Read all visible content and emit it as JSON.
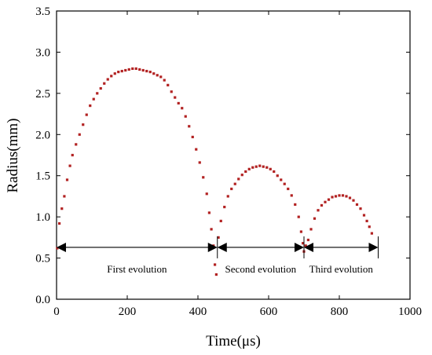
{
  "chart_data": {
    "type": "scatter",
    "xlabel": "Time(μs)",
    "ylabel": "Radius(mm)",
    "xlim": [
      0,
      1000
    ],
    "ylim": [
      0,
      3.5
    ],
    "xticks": [
      0,
      200,
      400,
      600,
      800,
      1000
    ],
    "yticks": [
      0.0,
      0.5,
      1.0,
      1.5,
      2.0,
      2.5,
      3.0,
      3.5
    ],
    "xtick_labels": [
      "0",
      "200",
      "400",
      "600",
      "800",
      "1000"
    ],
    "ytick_labels": [
      "0.0",
      "0.5",
      "1.0",
      "1.5",
      "2.0",
      "2.5",
      "3.0",
      "3.5"
    ],
    "marker_color": "#b22222",
    "series": [
      {
        "points": [
          [
            2,
            0.62
          ],
          [
            8,
            0.92
          ],
          [
            15,
            1.1
          ],
          [
            22,
            1.25
          ],
          [
            30,
            1.45
          ],
          [
            38,
            1.62
          ],
          [
            45,
            1.75
          ],
          [
            55,
            1.88
          ],
          [
            65,
            2.0
          ],
          [
            75,
            2.12
          ],
          [
            85,
            2.24
          ],
          [
            95,
            2.35
          ],
          [
            105,
            2.43
          ],
          [
            115,
            2.5
          ],
          [
            125,
            2.56
          ],
          [
            135,
            2.62
          ],
          [
            145,
            2.67
          ],
          [
            155,
            2.71
          ],
          [
            165,
            2.74
          ],
          [
            175,
            2.76
          ],
          [
            185,
            2.77
          ],
          [
            195,
            2.78
          ],
          [
            205,
            2.79
          ],
          [
            215,
            2.8
          ],
          [
            225,
            2.8
          ],
          [
            235,
            2.79
          ],
          [
            245,
            2.78
          ],
          [
            255,
            2.77
          ],
          [
            265,
            2.76
          ],
          [
            275,
            2.74
          ],
          [
            285,
            2.72
          ],
          [
            295,
            2.7
          ],
          [
            305,
            2.66
          ],
          [
            315,
            2.6
          ],
          [
            325,
            2.52
          ],
          [
            335,
            2.45
          ],
          [
            345,
            2.38
          ],
          [
            355,
            2.32
          ],
          [
            365,
            2.22
          ],
          [
            375,
            2.1
          ],
          [
            385,
            1.97
          ],
          [
            395,
            1.82
          ],
          [
            405,
            1.66
          ],
          [
            415,
            1.48
          ],
          [
            425,
            1.28
          ],
          [
            432,
            1.05
          ],
          [
            438,
            0.85
          ],
          [
            444,
            0.65
          ],
          [
            448,
            0.42
          ],
          [
            452,
            0.3
          ],
          [
            458,
            0.75
          ],
          [
            465,
            0.95
          ],
          [
            475,
            1.12
          ],
          [
            485,
            1.25
          ],
          [
            495,
            1.34
          ],
          [
            505,
            1.4
          ],
          [
            515,
            1.46
          ],
          [
            525,
            1.51
          ],
          [
            535,
            1.55
          ],
          [
            545,
            1.58
          ],
          [
            555,
            1.6
          ],
          [
            565,
            1.61
          ],
          [
            575,
            1.62
          ],
          [
            585,
            1.61
          ],
          [
            595,
            1.6
          ],
          [
            605,
            1.58
          ],
          [
            615,
            1.55
          ],
          [
            625,
            1.5
          ],
          [
            635,
            1.45
          ],
          [
            645,
            1.4
          ],
          [
            655,
            1.34
          ],
          [
            665,
            1.26
          ],
          [
            675,
            1.15
          ],
          [
            685,
            1.0
          ],
          [
            692,
            0.82
          ],
          [
            697,
            0.68
          ],
          [
            700,
            0.58
          ],
          [
            705,
            0.65
          ],
          [
            712,
            0.72
          ],
          [
            720,
            0.85
          ],
          [
            730,
            0.98
          ],
          [
            740,
            1.08
          ],
          [
            750,
            1.14
          ],
          [
            760,
            1.18
          ],
          [
            770,
            1.21
          ],
          [
            780,
            1.24
          ],
          [
            790,
            1.25
          ],
          [
            800,
            1.26
          ],
          [
            810,
            1.26
          ],
          [
            820,
            1.25
          ],
          [
            830,
            1.23
          ],
          [
            840,
            1.2
          ],
          [
            850,
            1.15
          ],
          [
            860,
            1.1
          ],
          [
            870,
            1.02
          ],
          [
            878,
            0.95
          ],
          [
            885,
            0.88
          ],
          [
            892,
            0.8
          ]
        ]
      }
    ],
    "annotations": [
      {
        "text": "First evolution",
        "x_from": 0,
        "x_to": 455,
        "y": 0.63
      },
      {
        "text": "Second evolution",
        "x_from": 455,
        "x_to": 700,
        "y": 0.63
      },
      {
        "text": "Third evolution",
        "x_from": 700,
        "x_to": 910,
        "y": 0.63
      }
    ]
  }
}
